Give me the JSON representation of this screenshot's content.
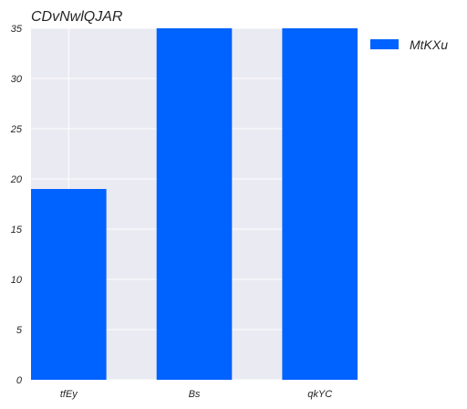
{
  "chart_data": {
    "type": "bar",
    "title": "CDvNwlQJAR",
    "xlabel": "",
    "ylabel": "",
    "categories": [
      "tfEy",
      "Bs",
      "qkYC"
    ],
    "series": [
      {
        "name": "MtKXu",
        "values": [
          19,
          35,
          35
        ],
        "color": "#0062ff"
      }
    ],
    "ylim": [
      0,
      35
    ],
    "yticks": [
      0,
      5,
      10,
      15,
      20,
      25,
      30,
      35
    ],
    "grid": true,
    "legend_position": "outside-right",
    "background_color": "#eaeaf2",
    "grid_color": "#ffffff"
  }
}
